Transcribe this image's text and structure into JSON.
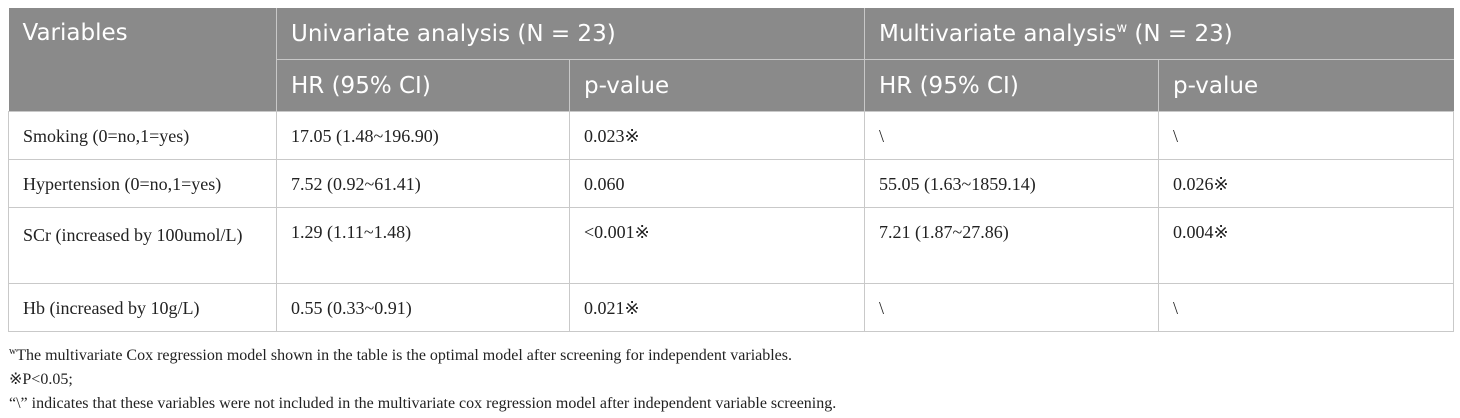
{
  "header": {
    "variables": "Variables",
    "univariate": "Univariate analysis (N = 23)",
    "multivariate": "Multivariate analysis",
    "multivariate_sup": "w",
    "multivariate_n": " (N = 23)",
    "hr_uni": "HR (95% CI)",
    "p_uni": "p-value",
    "hr_multi": "HR (95% CI)",
    "p_multi": "p-value"
  },
  "rows": [
    {
      "variable": "Smoking (0=no,1=yes)",
      "hr_uni": "17.05 (1.48~196.90)",
      "p_uni": "0.023※",
      "hr_multi": "\\",
      "p_multi": "\\"
    },
    {
      "variable": "Hypertension (0=no,1=yes)",
      "hr_uni": "7.52 (0.92~61.41)",
      "p_uni": "0.060",
      "hr_multi": "55.05 (1.63~1859.14)",
      "p_multi": "0.026※"
    },
    {
      "variable": "SCr (increased by 100umol/L)",
      "hr_uni": "1.29 (1.11~1.48)",
      "p_uni": "<0.001※",
      "hr_multi": "7.21 (1.87~27.86)",
      "p_multi": "0.004※"
    },
    {
      "variable": "Hb (increased by 10g/L)",
      "hr_uni": "0.55 (0.33~0.91)",
      "p_uni": "0.021※",
      "hr_multi": "\\",
      "p_multi": "\\"
    }
  ],
  "notes": {
    "note1_sup": "w",
    "note1": "The multivariate Cox regression model shown in the table is the optimal model after screening for independent variables.",
    "note2": "※P<0.05;",
    "note3": "“\\” indicates that these variables were not included in the multivariate cox regression model after independent variable screening."
  }
}
